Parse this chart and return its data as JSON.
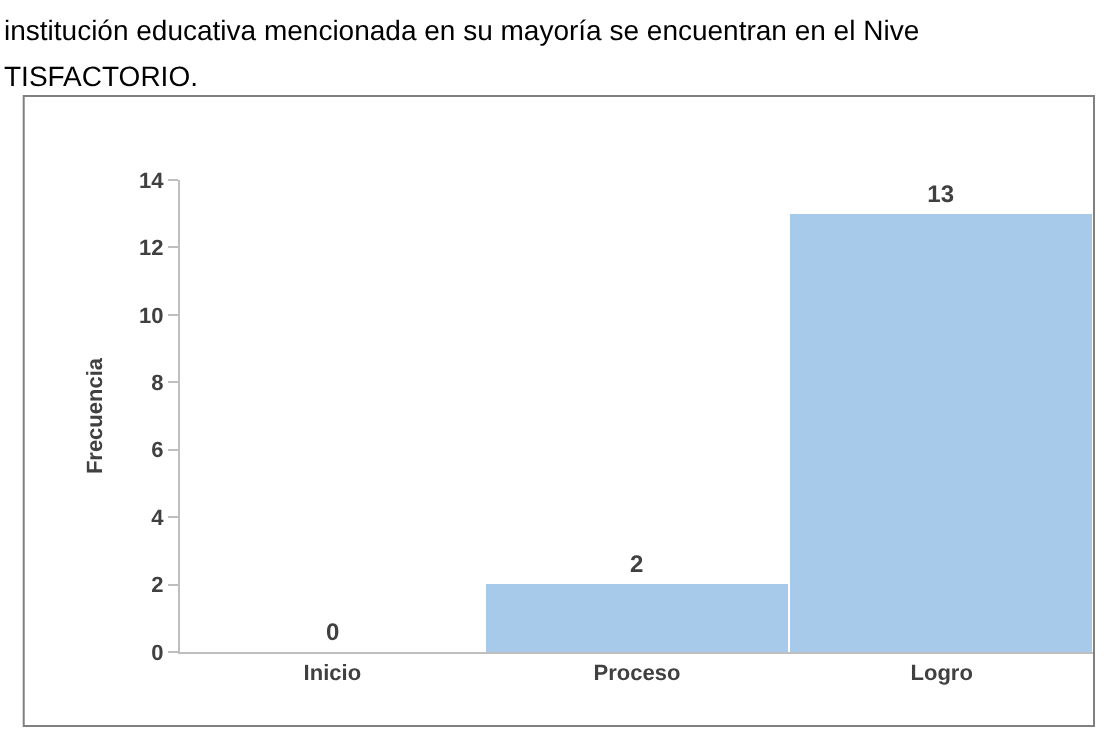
{
  "chart_data": {
    "type": "bar",
    "annotations": [
      "institución educativa mencionada en su mayoría se encuentran en el Nive",
      "TISFACTORIO."
    ],
    "ylabel": "Frecuencia",
    "categories": [
      "Inicio",
      "Proceso",
      "Logro"
    ],
    "values": [
      0,
      2,
      13
    ],
    "color": "#a7c9ea",
    "ylim": [
      0,
      14
    ],
    "yticks": [
      0,
      2,
      4,
      6,
      8,
      10,
      12,
      14
    ],
    "data_labels": true,
    "legend": false
  }
}
